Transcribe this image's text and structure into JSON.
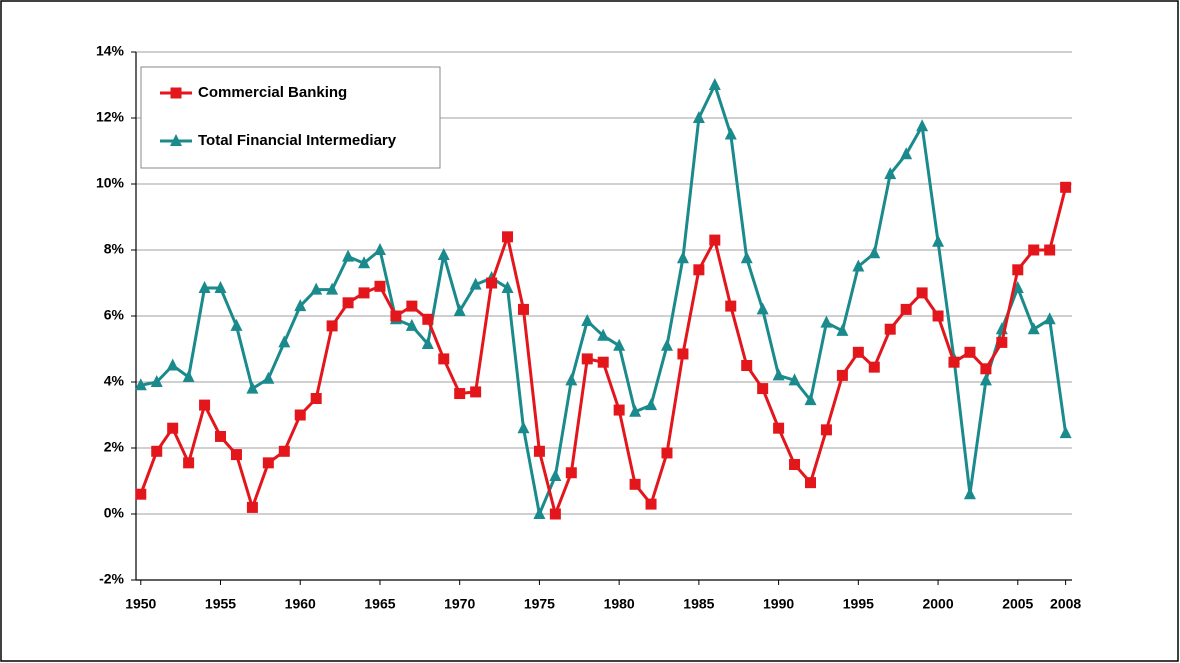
{
  "chart_data": {
    "type": "line",
    "x": [
      1950,
      1951,
      1952,
      1953,
      1954,
      1955,
      1956,
      1957,
      1958,
      1959,
      1960,
      1961,
      1962,
      1963,
      1964,
      1965,
      1966,
      1967,
      1968,
      1969,
      1970,
      1971,
      1972,
      1973,
      1974,
      1975,
      1976,
      1977,
      1978,
      1979,
      1980,
      1981,
      1982,
      1983,
      1984,
      1985,
      1986,
      1987,
      1988,
      1989,
      1990,
      1991,
      1992,
      1993,
      1994,
      1995,
      1996,
      1997,
      1998,
      1999,
      2000,
      2001,
      2002,
      2003,
      2004,
      2005,
      2006,
      2007,
      2008
    ],
    "series": [
      {
        "name": "Commercial Banking",
        "color": "#e3161c",
        "marker": "square",
        "values": [
          0.6,
          1.9,
          2.6,
          1.55,
          3.3,
          2.35,
          1.8,
          0.2,
          1.55,
          1.9,
          3.0,
          3.5,
          5.7,
          6.4,
          6.7,
          6.9,
          6.0,
          6.3,
          5.9,
          4.7,
          3.65,
          3.7,
          7.0,
          8.4,
          6.2,
          1.9,
          0.0,
          1.25,
          4.7,
          4.6,
          3.15,
          0.9,
          0.3,
          1.85,
          4.85,
          7.4,
          8.3,
          6.3,
          4.5,
          3.8,
          2.6,
          1.5,
          0.95,
          2.55,
          4.2,
          4.9,
          4.45,
          5.6,
          6.2,
          6.7,
          6.0,
          4.6,
          4.9,
          4.4,
          5.2,
          7.4,
          8.0,
          8.0,
          9.9
        ]
      },
      {
        "name": "Total Financial Intermediary",
        "color": "#1a8a8c",
        "marker": "triangle",
        "values": [
          3.9,
          4.0,
          4.5,
          4.15,
          6.85,
          6.85,
          5.7,
          3.8,
          4.1,
          5.2,
          6.3,
          6.8,
          6.8,
          7.8,
          7.6,
          8.0,
          5.9,
          5.7,
          5.15,
          7.85,
          6.15,
          6.95,
          7.15,
          6.85,
          2.6,
          0.0,
          1.15,
          4.05,
          5.85,
          5.4,
          5.1,
          3.1,
          3.3,
          5.1,
          7.75,
          12.0,
          13.0,
          11.5,
          7.75,
          6.2,
          4.2,
          4.05,
          3.45,
          5.8,
          5.55,
          7.5,
          7.9,
          10.3,
          10.9,
          11.75,
          8.25,
          4.7,
          0.6,
          4.05,
          5.6,
          6.85,
          5.6,
          5.9,
          2.45
        ]
      }
    ],
    "xlim": [
      1949.7,
      2008.4
    ],
    "xticks": [
      1950,
      1955,
      1960,
      1965,
      1970,
      1975,
      1980,
      1985,
      1990,
      1995,
      2000,
      2005,
      2008
    ],
    "ylim": [
      -2,
      14
    ],
    "yticks": [
      {
        "value": -2,
        "label": "-2%"
      },
      {
        "value": 0,
        "label": "0%"
      },
      {
        "value": 2,
        "label": "2%"
      },
      {
        "value": 4,
        "label": "4%"
      },
      {
        "value": 6,
        "label": "6%"
      },
      {
        "value": 8,
        "label": "8%"
      },
      {
        "value": 10,
        "label": "10%"
      },
      {
        "value": 12,
        "label": "12%"
      },
      {
        "value": 14,
        "label": "14%"
      }
    ],
    "grid": true,
    "legend": "upper left"
  }
}
